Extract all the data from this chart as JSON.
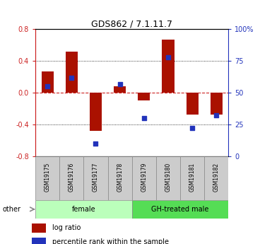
{
  "title": "GDS862 / 7.1.11.7",
  "samples": [
    "GSM19175",
    "GSM19176",
    "GSM19177",
    "GSM19178",
    "GSM19179",
    "GSM19180",
    "GSM19181",
    "GSM19182"
  ],
  "log_ratio": [
    0.27,
    0.52,
    -0.48,
    0.08,
    -0.1,
    0.67,
    -0.28,
    -0.28
  ],
  "percentile_rank": [
    55,
    62,
    10,
    57,
    30,
    78,
    22,
    32
  ],
  "groups": [
    {
      "label": "female",
      "start": 0,
      "end": 4,
      "color": "#bbffbb"
    },
    {
      "label": "GH-treated male",
      "start": 4,
      "end": 8,
      "color": "#55dd55"
    }
  ],
  "ylim_left": [
    -0.8,
    0.8
  ],
  "ylim_right": [
    0,
    100
  ],
  "bar_color": "#aa1100",
  "dot_color": "#2233bb",
  "zero_line_color": "#cc2222",
  "left_tick_color": "#cc2222",
  "right_tick_color": "#2233bb",
  "other_label": "other",
  "sample_box_color": "#cccccc",
  "yticks_left": [
    -0.8,
    -0.4,
    0.0,
    0.4,
    0.8
  ],
  "yticks_right": [
    0,
    25,
    50,
    75,
    100
  ]
}
